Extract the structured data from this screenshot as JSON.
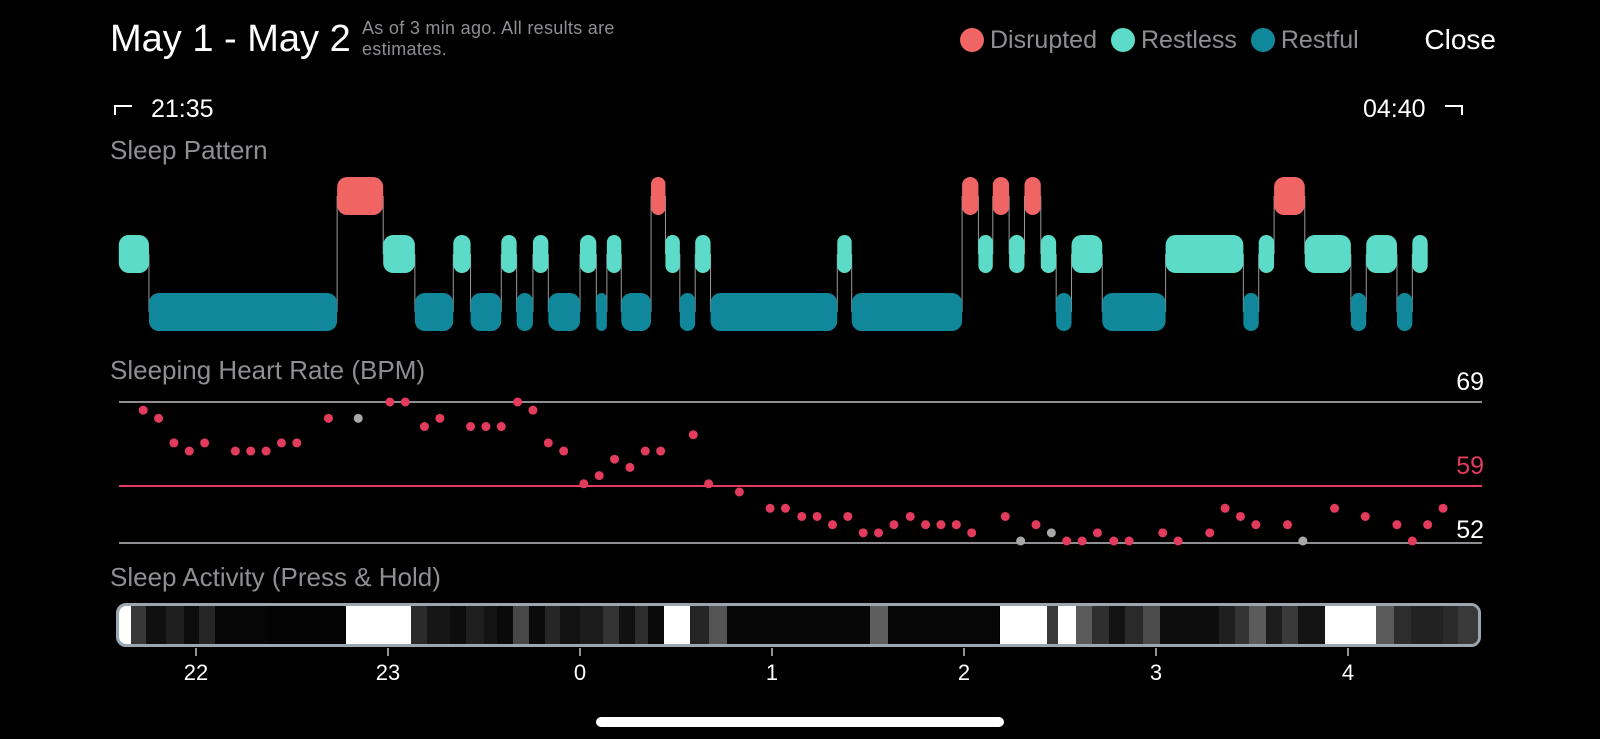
{
  "header": {
    "title": "May 1 - May 2",
    "subtitle": "As of 3 min ago. All results are estimates.",
    "close_label": "Close"
  },
  "legend": [
    {
      "label": "Disrupted",
      "color": "#f06464"
    },
    {
      "label": "Restless",
      "color": "#5cdcc8"
    },
    {
      "label": "Restful",
      "color": "#10879a"
    }
  ],
  "time_range": {
    "start": "21:35",
    "end": "04:40"
  },
  "sections": {
    "sleep_pattern": "Sleep Pattern",
    "heart_rate": "Sleeping Heart Rate (BPM)",
    "sleep_activity": "Sleep Activity (Press & Hold)"
  },
  "sleep_pattern": {
    "segments": [
      {
        "state": "restless",
        "start": 21.598,
        "end": 21.755
      },
      {
        "state": "restful",
        "start": 21.755,
        "end": 22.735
      },
      {
        "state": "disrupted",
        "start": 22.735,
        "end": 22.975
      },
      {
        "state": "restless",
        "start": 22.975,
        "end": 23.14
      },
      {
        "state": "restful",
        "start": 23.14,
        "end": 23.34
      },
      {
        "state": "restless",
        "start": 23.34,
        "end": 23.43
      },
      {
        "state": "restful",
        "start": 23.43,
        "end": 23.59
      },
      {
        "state": "restless",
        "start": 23.59,
        "end": 23.67
      },
      {
        "state": "restful",
        "start": 23.67,
        "end": 23.755
      },
      {
        "state": "restless",
        "start": 23.755,
        "end": 23.835
      },
      {
        "state": "restful",
        "start": 23.835,
        "end": 24.0
      },
      {
        "state": "restless",
        "start": 24.0,
        "end": 24.085
      },
      {
        "state": "restful",
        "start": 24.085,
        "end": 24.14
      },
      {
        "state": "restless",
        "start": 24.14,
        "end": 24.215
      },
      {
        "state": "restful",
        "start": 24.215,
        "end": 24.37
      },
      {
        "state": "disrupted",
        "start": 24.37,
        "end": 24.445
      },
      {
        "state": "restless",
        "start": 24.445,
        "end": 24.52
      },
      {
        "state": "restful",
        "start": 24.52,
        "end": 24.6
      },
      {
        "state": "restless",
        "start": 24.6,
        "end": 24.68
      },
      {
        "state": "restful",
        "start": 24.68,
        "end": 25.34
      },
      {
        "state": "restless",
        "start": 25.34,
        "end": 25.415
      },
      {
        "state": "restful",
        "start": 25.415,
        "end": 25.99
      },
      {
        "state": "disrupted",
        "start": 25.99,
        "end": 26.075
      },
      {
        "state": "restless",
        "start": 26.075,
        "end": 26.15
      },
      {
        "state": "disrupted",
        "start": 26.15,
        "end": 26.235
      },
      {
        "state": "restless",
        "start": 26.235,
        "end": 26.315
      },
      {
        "state": "disrupted",
        "start": 26.315,
        "end": 26.4
      },
      {
        "state": "restless",
        "start": 26.4,
        "end": 26.48
      },
      {
        "state": "restful",
        "start": 26.48,
        "end": 26.56
      },
      {
        "state": "restless",
        "start": 26.56,
        "end": 26.72
      },
      {
        "state": "restful",
        "start": 26.72,
        "end": 27.05
      },
      {
        "state": "restless",
        "start": 27.05,
        "end": 27.455
      },
      {
        "state": "restful",
        "start": 27.455,
        "end": 27.535
      },
      {
        "state": "restless",
        "start": 27.535,
        "end": 27.615
      },
      {
        "state": "disrupted",
        "start": 27.615,
        "end": 27.775
      },
      {
        "state": "restless",
        "start": 27.775,
        "end": 28.015
      },
      {
        "state": "restful",
        "start": 28.015,
        "end": 28.095
      },
      {
        "state": "restless",
        "start": 28.095,
        "end": 28.255
      },
      {
        "state": "restful",
        "start": 28.255,
        "end": 28.335
      },
      {
        "state": "restless",
        "start": 28.335,
        "end": 28.415
      }
    ]
  },
  "heart_rate": {
    "labels": {
      "max": "69",
      "avg": "59",
      "min": "52"
    },
    "colors": {
      "max_line": "#8e8e93",
      "avg_line": "#e33b5e",
      "min_line": "#8e8e93",
      "point": "#e33b5e",
      "gray_point": "#a8a8a8"
    },
    "points": [
      {
        "t": 21.725,
        "v": 68,
        "gray": false
      },
      {
        "t": 21.805,
        "v": 67,
        "gray": false
      },
      {
        "t": 21.885,
        "v": 64,
        "gray": false
      },
      {
        "t": 21.965,
        "v": 63,
        "gray": false
      },
      {
        "t": 22.045,
        "v": 64,
        "gray": false
      },
      {
        "t": 22.205,
        "v": 63,
        "gray": false
      },
      {
        "t": 22.285,
        "v": 63,
        "gray": false
      },
      {
        "t": 22.365,
        "v": 63,
        "gray": false
      },
      {
        "t": 22.445,
        "v": 64,
        "gray": false
      },
      {
        "t": 22.525,
        "v": 64,
        "gray": false
      },
      {
        "t": 22.69,
        "v": 67,
        "gray": false
      },
      {
        "t": 22.845,
        "v": 67,
        "gray": true
      },
      {
        "t": 23.01,
        "v": 69,
        "gray": false
      },
      {
        "t": 23.09,
        "v": 69,
        "gray": false
      },
      {
        "t": 23.19,
        "v": 66,
        "gray": false
      },
      {
        "t": 23.27,
        "v": 67,
        "gray": false
      },
      {
        "t": 23.43,
        "v": 66,
        "gray": false
      },
      {
        "t": 23.51,
        "v": 66,
        "gray": false
      },
      {
        "t": 23.59,
        "v": 66,
        "gray": false
      },
      {
        "t": 23.675,
        "v": 69,
        "gray": false
      },
      {
        "t": 23.755,
        "v": 68,
        "gray": false
      },
      {
        "t": 23.835,
        "v": 64,
        "gray": false
      },
      {
        "t": 23.915,
        "v": 63,
        "gray": false
      },
      {
        "t": 24.02,
        "v": 59,
        "gray": false
      },
      {
        "t": 24.1,
        "v": 60,
        "gray": false
      },
      {
        "t": 24.18,
        "v": 62,
        "gray": false
      },
      {
        "t": 24.26,
        "v": 61,
        "gray": false
      },
      {
        "t": 24.34,
        "v": 63,
        "gray": false
      },
      {
        "t": 24.42,
        "v": 63,
        "gray": false
      },
      {
        "t": 24.59,
        "v": 65,
        "gray": false
      },
      {
        "t": 24.67,
        "v": 59,
        "gray": false
      },
      {
        "t": 24.83,
        "v": 58,
        "gray": false
      },
      {
        "t": 24.99,
        "v": 56,
        "gray": false
      },
      {
        "t": 25.07,
        "v": 56,
        "gray": false
      },
      {
        "t": 25.155,
        "v": 55,
        "gray": false
      },
      {
        "t": 25.235,
        "v": 55,
        "gray": false
      },
      {
        "t": 25.315,
        "v": 54,
        "gray": false
      },
      {
        "t": 25.395,
        "v": 55,
        "gray": false
      },
      {
        "t": 25.475,
        "v": 53,
        "gray": false
      },
      {
        "t": 25.555,
        "v": 53,
        "gray": false
      },
      {
        "t": 25.635,
        "v": 54,
        "gray": false
      },
      {
        "t": 25.72,
        "v": 55,
        "gray": false
      },
      {
        "t": 25.8,
        "v": 54,
        "gray": false
      },
      {
        "t": 25.88,
        "v": 54,
        "gray": false
      },
      {
        "t": 25.96,
        "v": 54,
        "gray": false
      },
      {
        "t": 26.04,
        "v": 53,
        "gray": false
      },
      {
        "t": 26.215,
        "v": 55,
        "gray": false
      },
      {
        "t": 26.295,
        "v": 52,
        "gray": true
      },
      {
        "t": 26.375,
        "v": 54,
        "gray": false
      },
      {
        "t": 26.455,
        "v": 53,
        "gray": true
      },
      {
        "t": 26.535,
        "v": 52,
        "gray": false
      },
      {
        "t": 26.615,
        "v": 52,
        "gray": false
      },
      {
        "t": 26.695,
        "v": 53,
        "gray": false
      },
      {
        "t": 26.78,
        "v": 52,
        "gray": false
      },
      {
        "t": 26.86,
        "v": 52,
        "gray": false
      },
      {
        "t": 27.035,
        "v": 53,
        "gray": false
      },
      {
        "t": 27.115,
        "v": 52,
        "gray": false
      },
      {
        "t": 27.28,
        "v": 53,
        "gray": false
      },
      {
        "t": 27.36,
        "v": 56,
        "gray": false
      },
      {
        "t": 27.44,
        "v": 55,
        "gray": false
      },
      {
        "t": 27.52,
        "v": 54,
        "gray": false
      },
      {
        "t": 27.685,
        "v": 54,
        "gray": false
      },
      {
        "t": 27.765,
        "v": 52,
        "gray": true
      },
      {
        "t": 27.93,
        "v": 56,
        "gray": false
      },
      {
        "t": 28.09,
        "v": 55,
        "gray": false
      },
      {
        "t": 28.255,
        "v": 54,
        "gray": false
      },
      {
        "t": 28.335,
        "v": 52,
        "gray": false
      },
      {
        "t": 28.415,
        "v": 54,
        "gray": false
      },
      {
        "t": 28.495,
        "v": 56,
        "gray": false
      }
    ]
  },
  "sleep_activity": {
    "segments": [
      {
        "start": 21.59,
        "end": 21.65,
        "shade": "#ffffff"
      },
      {
        "start": 21.65,
        "end": 21.73,
        "shade": "#383838"
      },
      {
        "start": 21.73,
        "end": 21.83,
        "shade": "#101010"
      },
      {
        "start": 21.83,
        "end": 21.92,
        "shade": "#1f1f1f"
      },
      {
        "start": 21.92,
        "end": 22.0,
        "shade": "#0c0c0c"
      },
      {
        "start": 22.0,
        "end": 22.08,
        "shade": "#262626"
      },
      {
        "start": 22.08,
        "end": 22.35,
        "shade": "#060606"
      },
      {
        "start": 22.35,
        "end": 22.75,
        "shade": "#030303"
      },
      {
        "start": 22.75,
        "end": 23.08,
        "shade": "#ffffff"
      },
      {
        "start": 23.08,
        "end": 23.16,
        "shade": "#2b2b2b"
      },
      {
        "start": 23.16,
        "end": 23.28,
        "shade": "#161616"
      },
      {
        "start": 23.28,
        "end": 23.36,
        "shade": "#0d0d0d"
      },
      {
        "start": 23.36,
        "end": 23.45,
        "shade": "#1f1f1f"
      },
      {
        "start": 23.45,
        "end": 23.52,
        "shade": "#141414"
      },
      {
        "start": 23.52,
        "end": 23.6,
        "shade": "#0a0a0a"
      },
      {
        "start": 23.6,
        "end": 23.68,
        "shade": "#484848"
      },
      {
        "start": 23.68,
        "end": 23.76,
        "shade": "#0b0b0b"
      },
      {
        "start": 23.76,
        "end": 23.84,
        "shade": "#262626"
      },
      {
        "start": 23.84,
        "end": 23.94,
        "shade": "#121212"
      },
      {
        "start": 23.94,
        "end": 24.06,
        "shade": "#1c1c1c"
      },
      {
        "start": 24.06,
        "end": 24.14,
        "shade": "#333333"
      },
      {
        "start": 24.14,
        "end": 24.22,
        "shade": "#111111"
      },
      {
        "start": 24.22,
        "end": 24.29,
        "shade": "#2d2d2d"
      },
      {
        "start": 24.29,
        "end": 24.37,
        "shade": "#0a0a0a"
      },
      {
        "start": 24.37,
        "end": 24.5,
        "shade": "#ffffff"
      },
      {
        "start": 24.5,
        "end": 24.6,
        "shade": "#252525"
      },
      {
        "start": 24.6,
        "end": 24.69,
        "shade": "#545454"
      },
      {
        "start": 24.69,
        "end": 25.42,
        "shade": "#070707"
      },
      {
        "start": 25.42,
        "end": 25.51,
        "shade": "#5e5e5e"
      },
      {
        "start": 25.51,
        "end": 26.08,
        "shade": "#060606"
      },
      {
        "start": 26.08,
        "end": 26.32,
        "shade": "#ffffff"
      },
      {
        "start": 26.32,
        "end": 26.38,
        "shade": "#3a3a3a"
      },
      {
        "start": 26.38,
        "end": 26.47,
        "shade": "#ffffff"
      },
      {
        "start": 26.47,
        "end": 26.55,
        "shade": "#5a5a5a"
      },
      {
        "start": 26.55,
        "end": 26.64,
        "shade": "#2f2f2f"
      },
      {
        "start": 26.64,
        "end": 26.72,
        "shade": "#131313"
      },
      {
        "start": 26.72,
        "end": 26.81,
        "shade": "#2a2a2a"
      },
      {
        "start": 26.81,
        "end": 26.9,
        "shade": "#4b4b4b"
      },
      {
        "start": 26.9,
        "end": 27.2,
        "shade": "#0d0d0d"
      },
      {
        "start": 27.2,
        "end": 27.28,
        "shade": "#1f1f1f"
      },
      {
        "start": 27.28,
        "end": 27.35,
        "shade": "#343434"
      },
      {
        "start": 27.35,
        "end": 27.44,
        "shade": "#5b5b5b"
      },
      {
        "start": 27.44,
        "end": 27.52,
        "shade": "#1d1d1d"
      },
      {
        "start": 27.52,
        "end": 27.6,
        "shade": "#3a3a3a"
      },
      {
        "start": 27.6,
        "end": 27.74,
        "shade": "#141414"
      },
      {
        "start": 27.74,
        "end": 28.0,
        "shade": "#ffffff"
      },
      {
        "start": 28.0,
        "end": 28.09,
        "shade": "#5a5a5a"
      },
      {
        "start": 28.09,
        "end": 28.18,
        "shade": "#2d2d2d"
      },
      {
        "start": 28.18,
        "end": 28.34,
        "shade": "#222222"
      },
      {
        "start": 28.34,
        "end": 28.42,
        "shade": "#2a2a2a"
      },
      {
        "start": 28.42,
        "end": 28.52,
        "shade": "#3a3a3a"
      }
    ]
  },
  "axis": {
    "ticks": [
      {
        "label": "22",
        "t": 22.0
      },
      {
        "label": "23",
        "t": 23.0
      },
      {
        "label": "0",
        "t": 24.0
      },
      {
        "label": "1",
        "t": 25.0
      },
      {
        "label": "2",
        "t": 26.0
      },
      {
        "label": "3",
        "t": 27.0
      },
      {
        "label": "4",
        "t": 28.0
      }
    ]
  }
}
